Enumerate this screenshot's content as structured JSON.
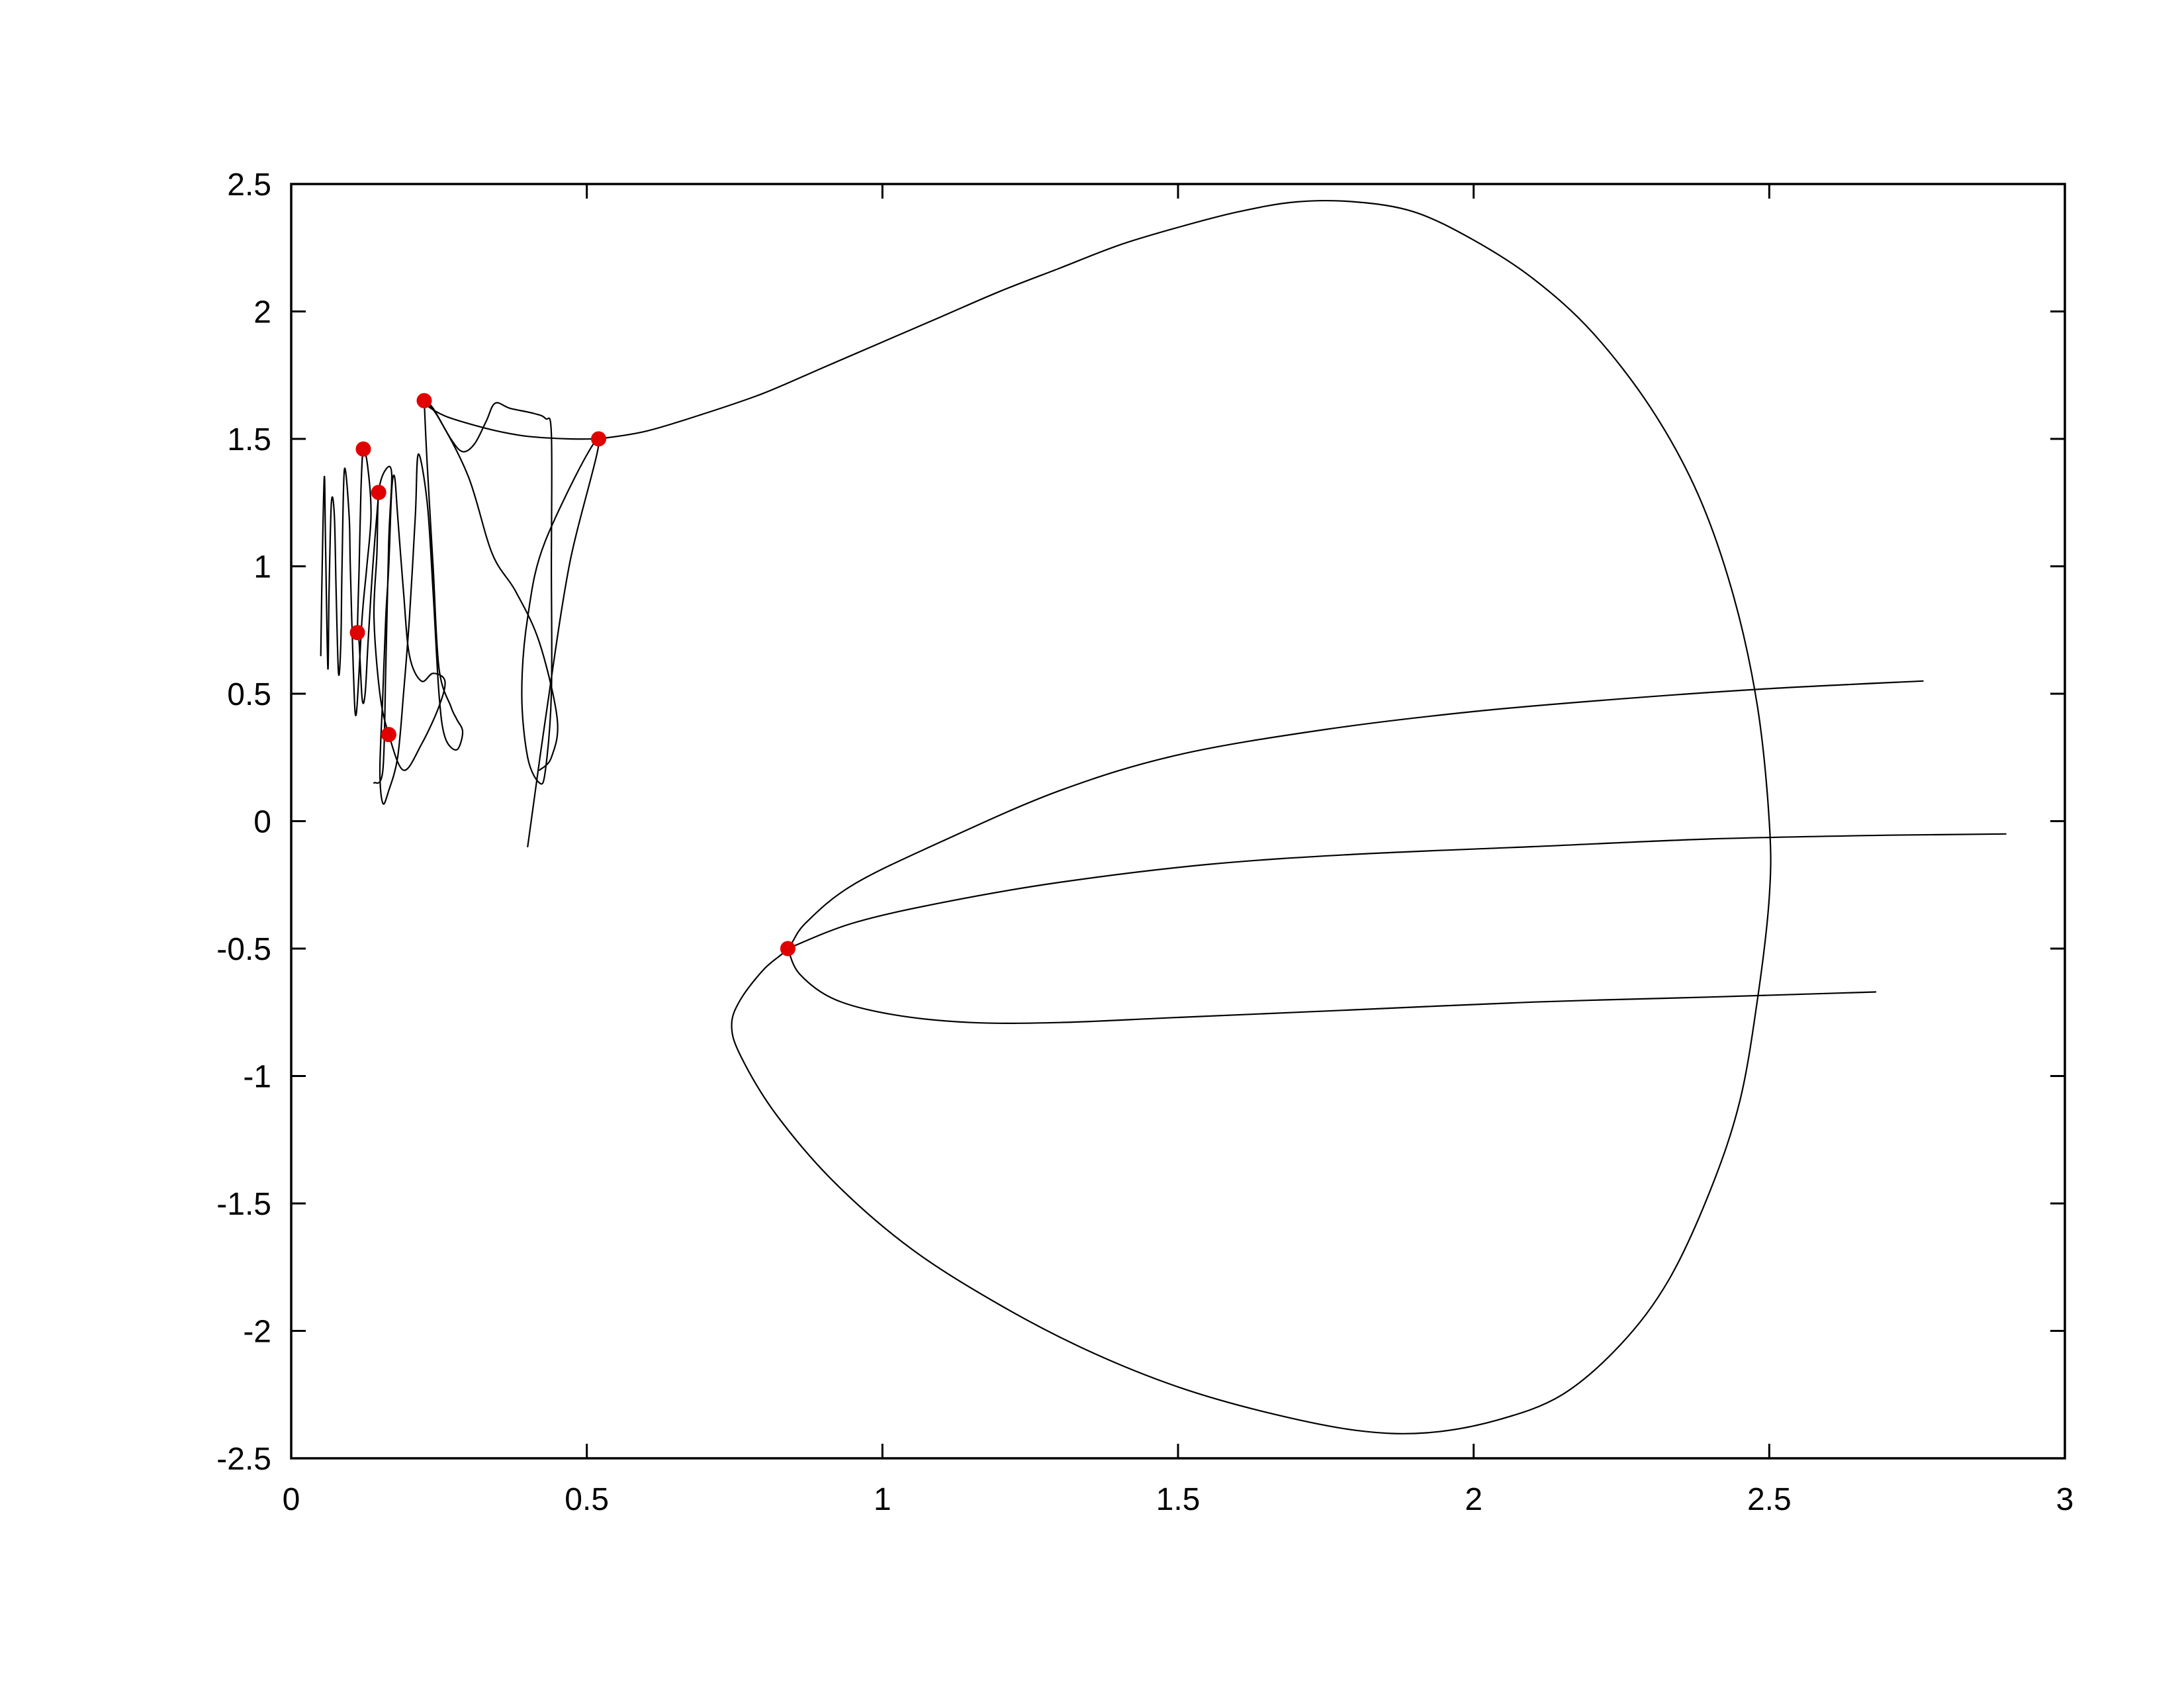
{
  "chart_data": {
    "type": "line",
    "title": "",
    "xlabel": "",
    "ylabel": "",
    "xlim": [
      0,
      3
    ],
    "ylim": [
      -2.5,
      2.5
    ],
    "x_ticks": [
      "0",
      "0.5",
      "1",
      "1.5",
      "2",
      "2.5",
      "3"
    ],
    "y_ticks": [
      "-2.5",
      "-2",
      "-1.5",
      "-1",
      "-0.5",
      "0",
      "0.5",
      "1",
      "1.5",
      "2",
      "2.5"
    ],
    "x_tick_values": [
      0,
      0.5,
      1,
      1.5,
      2,
      2.5,
      3
    ],
    "y_tick_values": [
      -2.5,
      -2,
      -1.5,
      -1,
      -0.5,
      0,
      0.5,
      1,
      1.5,
      2,
      2.5
    ],
    "grid": false,
    "legend": "none",
    "line_color": "#000000",
    "marker_color": "#e00000",
    "series": [
      {
        "points": [
          [
            0.52,
            1.5
          ],
          [
            0.6,
            1.53
          ],
          [
            0.7,
            1.6
          ],
          [
            0.8,
            1.68
          ],
          [
            0.9,
            1.78
          ],
          [
            1.0,
            1.88
          ],
          [
            1.1,
            1.98
          ],
          [
            1.2,
            2.08
          ],
          [
            1.3,
            2.17
          ],
          [
            1.4,
            2.26
          ],
          [
            1.5,
            2.33
          ],
          [
            1.6,
            2.39
          ],
          [
            1.7,
            2.43
          ],
          [
            1.8,
            2.43
          ],
          [
            1.9,
            2.39
          ],
          [
            2.0,
            2.28
          ],
          [
            2.1,
            2.13
          ],
          [
            2.2,
            1.92
          ],
          [
            2.3,
            1.62
          ],
          [
            2.38,
            1.28
          ],
          [
            2.44,
            0.88
          ],
          [
            2.48,
            0.45
          ],
          [
            2.5,
            0.0
          ],
          [
            2.5,
            -0.3
          ],
          [
            2.48,
            -0.7
          ],
          [
            2.45,
            -1.1
          ],
          [
            2.4,
            -1.45
          ],
          [
            2.33,
            -1.8
          ],
          [
            2.25,
            -2.05
          ],
          [
            2.15,
            -2.25
          ],
          [
            2.04,
            -2.35
          ],
          [
            1.92,
            -2.4
          ],
          [
            1.8,
            -2.39
          ],
          [
            1.65,
            -2.32
          ],
          [
            1.5,
            -2.22
          ],
          [
            1.35,
            -2.08
          ],
          [
            1.2,
            -1.9
          ],
          [
            1.05,
            -1.68
          ],
          [
            0.92,
            -1.42
          ],
          [
            0.82,
            -1.15
          ],
          [
            0.76,
            -0.92
          ],
          [
            0.745,
            -0.8
          ],
          [
            0.76,
            -0.7
          ],
          [
            0.8,
            -0.58
          ],
          [
            0.84,
            -0.5
          ],
          [
            0.87,
            -0.4
          ],
          [
            0.95,
            -0.25
          ],
          [
            1.1,
            -0.08
          ],
          [
            1.3,
            0.12
          ],
          [
            1.5,
            0.26
          ],
          [
            1.75,
            0.36
          ],
          [
            2.0,
            0.43
          ],
          [
            2.25,
            0.48
          ],
          [
            2.5,
            0.52
          ],
          [
            2.76,
            0.55
          ]
        ]
      },
      {
        "points": [
          [
            0.84,
            -0.5
          ],
          [
            0.95,
            -0.4
          ],
          [
            1.1,
            -0.32
          ],
          [
            1.3,
            -0.24
          ],
          [
            1.55,
            -0.17
          ],
          [
            1.8,
            -0.13
          ],
          [
            2.1,
            -0.1
          ],
          [
            2.4,
            -0.07
          ],
          [
            2.7,
            -0.055
          ],
          [
            2.9,
            -0.05
          ]
        ]
      },
      {
        "points": [
          [
            0.84,
            -0.5
          ],
          [
            0.86,
            -0.6
          ],
          [
            0.92,
            -0.7
          ],
          [
            1.02,
            -0.76
          ],
          [
            1.15,
            -0.79
          ],
          [
            1.3,
            -0.79
          ],
          [
            1.5,
            -0.77
          ],
          [
            1.8,
            -0.74
          ],
          [
            2.1,
            -0.71
          ],
          [
            2.4,
            -0.69
          ],
          [
            2.68,
            -0.67
          ]
        ]
      },
      {
        "points": [
          [
            0.52,
            1.5
          ],
          [
            0.47,
            1.5
          ],
          [
            0.4,
            1.51
          ],
          [
            0.35,
            1.53
          ],
          [
            0.3,
            1.56
          ],
          [
            0.26,
            1.59
          ],
          [
            0.23,
            1.63
          ],
          [
            0.225,
            1.65
          ],
          [
            0.24,
            1.62
          ],
          [
            0.27,
            1.5
          ],
          [
            0.29,
            1.45
          ],
          [
            0.31,
            1.48
          ],
          [
            0.33,
            1.57
          ],
          [
            0.345,
            1.64
          ],
          [
            0.37,
            1.62
          ],
          [
            0.41,
            1.6
          ],
          [
            0.43,
            1.58
          ],
          [
            0.44,
            1.52
          ],
          [
            0.44,
            1.0
          ],
          [
            0.44,
            0.5
          ],
          [
            0.43,
            0.2
          ],
          [
            0.42,
            0.15
          ],
          [
            0.4,
            0.25
          ],
          [
            0.39,
            0.5
          ],
          [
            0.4,
            0.8
          ],
          [
            0.43,
            1.1
          ],
          [
            0.52,
            1.5
          ],
          [
            0.47,
            1.0
          ],
          [
            0.43,
            0.4
          ],
          [
            0.4,
            -0.1
          ]
        ]
      },
      {
        "points": [
          [
            0.225,
            1.65
          ],
          [
            0.25,
            1.58
          ],
          [
            0.3,
            1.35
          ],
          [
            0.34,
            1.05
          ],
          [
            0.38,
            0.9
          ],
          [
            0.42,
            0.7
          ],
          [
            0.45,
            0.4
          ],
          [
            0.44,
            0.25
          ],
          [
            0.42,
            0.2
          ]
        ]
      },
      {
        "points": [
          [
            0.225,
            1.65
          ],
          [
            0.23,
            1.4
          ],
          [
            0.24,
            1.0
          ],
          [
            0.25,
            0.6
          ],
          [
            0.27,
            0.45
          ],
          [
            0.28,
            0.4
          ],
          [
            0.29,
            0.35
          ],
          [
            0.28,
            0.28
          ],
          [
            0.26,
            0.33
          ],
          [
            0.25,
            0.5
          ],
          [
            0.24,
            0.9
          ],
          [
            0.23,
            1.25
          ],
          [
            0.215,
            1.44
          ],
          [
            0.21,
            1.2
          ],
          [
            0.2,
            0.8
          ],
          [
            0.19,
            0.5
          ],
          [
            0.18,
            0.25
          ],
          [
            0.165,
            0.12
          ],
          [
            0.155,
            0.07
          ],
          [
            0.15,
            0.2
          ],
          [
            0.155,
            0.5
          ],
          [
            0.16,
            0.8
          ],
          [
            0.165,
            1.0
          ],
          [
            0.17,
            1.3
          ],
          [
            0.175,
            1.35
          ],
          [
            0.18,
            1.2
          ],
          [
            0.19,
            0.9
          ],
          [
            0.2,
            0.65
          ],
          [
            0.22,
            0.55
          ],
          [
            0.24,
            0.58
          ],
          [
            0.26,
            0.55
          ],
          [
            0.25,
            0.45
          ],
          [
            0.22,
            0.3
          ],
          [
            0.19,
            0.2
          ],
          [
            0.165,
            0.34
          ],
          [
            0.15,
            0.5
          ],
          [
            0.14,
            0.8
          ],
          [
            0.145,
            1.05
          ],
          [
            0.148,
            1.29
          ],
          [
            0.16,
            1.38
          ],
          [
            0.17,
            1.36
          ],
          [
            0.165,
            1.1
          ],
          [
            0.16,
            0.6
          ],
          [
            0.155,
            0.2
          ],
          [
            0.14,
            0.15
          ]
        ]
      },
      {
        "points": [
          [
            0.148,
            1.29
          ],
          [
            0.138,
            1.0
          ],
          [
            0.13,
            0.7
          ],
          [
            0.125,
            0.5
          ],
          [
            0.12,
            0.48
          ],
          [
            0.115,
            0.7
          ],
          [
            0.112,
            0.74
          ],
          [
            0.115,
            1.0
          ],
          [
            0.118,
            1.3
          ],
          [
            0.122,
            1.46
          ],
          [
            0.13,
            1.38
          ],
          [
            0.135,
            1.2
          ],
          [
            0.128,
            1.0
          ],
          [
            0.12,
            0.8
          ],
          [
            0.11,
            0.42
          ],
          [
            0.105,
            0.6
          ],
          [
            0.1,
            1.0
          ],
          [
            0.098,
            1.2
          ],
          [
            0.09,
            1.38
          ],
          [
            0.086,
            1.0
          ],
          [
            0.084,
            0.7
          ],
          [
            0.08,
            0.58
          ],
          [
            0.076,
            0.9
          ],
          [
            0.073,
            1.2
          ],
          [
            0.068,
            1.25
          ],
          [
            0.064,
            0.9
          ],
          [
            0.062,
            0.6
          ],
          [
            0.058,
            1.1
          ],
          [
            0.056,
            1.35
          ],
          [
            0.052,
            0.95
          ],
          [
            0.05,
            0.65
          ]
        ]
      }
    ],
    "markers": [
      [
        0.52,
        1.5
      ],
      [
        0.225,
        1.65
      ],
      [
        0.122,
        1.46
      ],
      [
        0.148,
        1.29
      ],
      [
        0.112,
        0.74
      ],
      [
        0.165,
        0.34
      ],
      [
        0.84,
        -0.5
      ]
    ]
  }
}
